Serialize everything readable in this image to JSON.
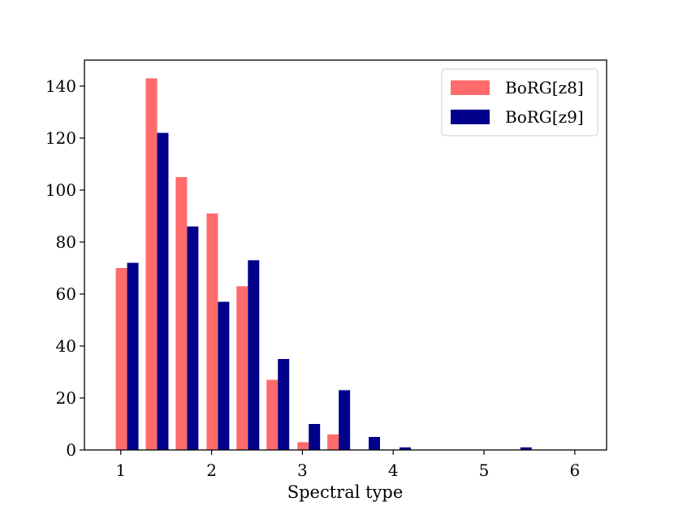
{
  "chart_data": {
    "type": "bar",
    "title": "",
    "xlabel": "Spectral type",
    "ylabel": "",
    "xlim": [
      0.6,
      6.35
    ],
    "ylim": [
      0,
      150
    ],
    "xticks": [
      1,
      2,
      3,
      4,
      5,
      6
    ],
    "yticks": [
      0,
      20,
      40,
      60,
      80,
      100,
      120,
      140
    ],
    "bin_width": 0.25,
    "bin_centers": [
      1.07,
      1.4,
      1.73,
      2.07,
      2.4,
      2.73,
      3.07,
      3.4,
      3.73,
      4.07,
      4.4,
      4.73,
      5.07,
      5.4,
      5.73,
      6.07
    ],
    "legend_position": "top-right",
    "grid": false,
    "series": [
      {
        "name": "BoRG[z8]",
        "color": "#ff6b6b",
        "values": [
          70,
          143,
          105,
          91,
          63,
          27,
          3,
          6,
          0,
          0,
          0,
          0,
          0,
          0,
          0,
          0
        ]
      },
      {
        "name": "BoRG[z9]",
        "color": "#00008b",
        "values": [
          72,
          122,
          86,
          57,
          73,
          35,
          10,
          23,
          5,
          1,
          0,
          0,
          0,
          1,
          0,
          0
        ]
      }
    ]
  }
}
